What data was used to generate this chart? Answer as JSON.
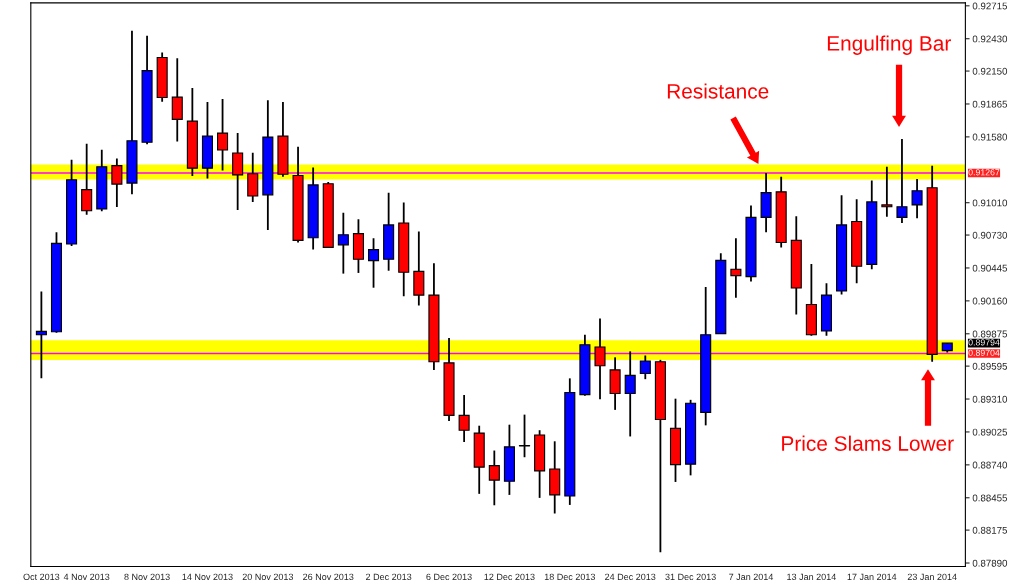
{
  "chart_data": {
    "type": "candlestick",
    "categories": [
      "Oct 2013",
      null,
      null,
      "4 Nov 2013",
      null,
      null,
      null,
      "8 Nov 2013",
      null,
      null,
      null,
      "14 Nov 2013",
      null,
      null,
      null,
      "20 Nov 2013",
      null,
      null,
      null,
      "26 Nov 2013",
      null,
      null,
      null,
      "2 Dec 2013",
      null,
      null,
      null,
      "6 Dec 2013",
      null,
      null,
      null,
      "12 Dec 2013",
      null,
      null,
      null,
      "18 Dec 2013",
      null,
      null,
      null,
      "24 Dec 2013",
      null,
      null,
      null,
      "31 Dec 2013",
      null,
      null,
      null,
      "7 Jan 2014",
      null,
      null,
      null,
      "13 Jan 2014",
      null,
      null,
      null,
      "17 Jan 2014",
      null,
      null,
      null,
      "23 Jan 2014",
      null
    ],
    "ohlc": [
      [
        0.89867,
        0.90242,
        0.89489,
        0.89896
      ],
      [
        0.89892,
        0.90754,
        0.89883,
        0.90658
      ],
      [
        0.90652,
        0.91382,
        0.90636,
        0.91209
      ],
      [
        0.91123,
        0.9152,
        0.90905,
        0.9094
      ],
      [
        0.90956,
        0.91469,
        0.90937,
        0.91321
      ],
      [
        0.91331,
        0.91392,
        0.90972,
        0.91171
      ],
      [
        0.9118,
        0.925,
        0.91084,
        0.91546
      ],
      [
        0.91533,
        0.92456,
        0.91517,
        0.92154
      ],
      [
        0.92267,
        0.92311,
        0.91885,
        0.91921
      ],
      [
        0.91924,
        0.9226,
        0.91539,
        0.91732
      ],
      [
        0.91716,
        0.92004,
        0.91241,
        0.91309
      ],
      [
        0.91309,
        0.91882,
        0.91219,
        0.91587
      ],
      [
        0.91613,
        0.91908,
        0.91289,
        0.91466
      ],
      [
        0.9144,
        0.91613,
        0.90947,
        0.91251
      ],
      [
        0.91261,
        0.91443,
        0.91017,
        0.91068
      ],
      [
        0.91078,
        0.91898,
        0.90774,
        0.91578
      ],
      [
        0.91587,
        0.91882,
        0.91235,
        0.91257
      ],
      [
        0.91245,
        0.91494,
        0.90665,
        0.90684
      ],
      [
        0.90706,
        0.91315,
        0.90604,
        0.91164
      ],
      [
        0.91174,
        0.9119,
        0.90617,
        0.90623
      ],
      [
        0.90645,
        0.90924,
        0.90396,
        0.90732
      ],
      [
        0.90742,
        0.90867,
        0.90402,
        0.9052
      ],
      [
        0.90508,
        0.90703,
        0.90274,
        0.90604
      ],
      [
        0.9052,
        0.91097,
        0.90421,
        0.90818
      ],
      [
        0.90834,
        0.91011,
        0.902,
        0.90408
      ],
      [
        0.90415,
        0.90761,
        0.9012,
        0.9021
      ],
      [
        0.9021,
        0.90485,
        0.89562,
        0.89633
      ],
      [
        0.89623,
        0.89838,
        0.8912,
        0.89168
      ],
      [
        0.89168,
        0.89345,
        0.88938,
        0.8904
      ],
      [
        0.89015,
        0.89079,
        0.88489,
        0.8872
      ],
      [
        0.88733,
        0.88864,
        0.8839,
        0.88608
      ],
      [
        0.88598,
        0.89088,
        0.8848,
        0.88896
      ],
      [
        0.88906,
        0.89175,
        0.88806,
        0.88906
      ],
      [
        0.88999,
        0.8904,
        0.88454,
        0.88688
      ],
      [
        0.88704,
        0.88944,
        0.88319,
        0.8848
      ],
      [
        0.8847,
        0.89489,
        0.88393,
        0.89367
      ],
      [
        0.89348,
        0.89867,
        0.89338,
        0.8978
      ],
      [
        0.89761,
        0.90008,
        0.89309,
        0.89598
      ],
      [
        0.89562,
        0.89671,
        0.89216,
        0.89358
      ],
      [
        0.89358,
        0.89723,
        0.88986,
        0.89515
      ],
      [
        0.89531,
        0.89687,
        0.89482,
        0.89639
      ],
      [
        0.89633,
        0.89649,
        0.87983,
        0.89133
      ],
      [
        0.89056,
        0.89313,
        0.88592,
        0.88742
      ],
      [
        0.88746,
        0.89303,
        0.88649,
        0.89274
      ],
      [
        0.89194,
        0.9028,
        0.89082,
        0.89867
      ],
      [
        0.89876,
        0.90572,
        0.89876,
        0.90511
      ],
      [
        0.90434,
        0.90703,
        0.90187,
        0.90379
      ],
      [
        0.9037,
        0.90985,
        0.90328,
        0.90883
      ],
      [
        0.90883,
        0.91267,
        0.90754,
        0.91097
      ],
      [
        0.91104,
        0.91235,
        0.90623,
        0.90665
      ],
      [
        0.90684,
        0.90892,
        0.90043,
        0.90271
      ],
      [
        0.90129,
        0.90479,
        0.89857,
        0.89867
      ],
      [
        0.89899,
        0.90312,
        0.89857,
        0.9021
      ],
      [
        0.90245,
        0.91075,
        0.90216,
        0.90818
      ],
      [
        0.90847,
        0.91039,
        0.90312,
        0.9046
      ],
      [
        0.90476,
        0.91203,
        0.90434,
        0.91017
      ],
      [
        0.90991,
        0.91321,
        0.90889,
        0.90975
      ],
      [
        0.90883,
        0.91562,
        0.90834,
        0.90975
      ],
      [
        0.90991,
        0.91216,
        0.90876,
        0.91113
      ],
      [
        0.91139,
        0.91331,
        0.89633,
        0.89697
      ],
      [
        0.89729,
        0.89794,
        0.89713,
        0.89794
      ]
    ],
    "colors": [
      "#0000ff",
      "#0000ff",
      "#0000ff",
      "#ff0000",
      "#0000ff",
      "#ff0000",
      "#0000ff",
      "#0000ff",
      "#ff0000",
      "#ff0000",
      "#ff0000",
      "#0000ff",
      "#ff0000",
      "#ff0000",
      "#ff0000",
      "#0000ff",
      "#ff0000",
      "#ff0000",
      "#0000ff",
      "#ff0000",
      "#0000ff",
      "#ff0000",
      "#0000ff",
      "#0000ff",
      "#ff0000",
      "#ff0000",
      "#ff0000",
      "#ff0000",
      "#ff0000",
      "#ff0000",
      "#ff0000",
      "#0000ff",
      "#000000",
      "#ff0000",
      "#ff0000",
      "#0000ff",
      "#0000ff",
      "#ff0000",
      "#ff0000",
      "#0000ff",
      "#0000ff",
      "#ff0000",
      "#ff0000",
      "#0000ff",
      "#0000ff",
      "#0000ff",
      "#ff0000",
      "#0000ff",
      "#0000ff",
      "#ff0000",
      "#ff0000",
      "#ff0000",
      "#0000ff",
      "#0000ff",
      "#ff0000",
      "#0000ff",
      "#ff0000",
      "#0000ff",
      "#0000ff",
      "#ff0000",
      "#0000ff"
    ],
    "ylim": [
      0.8786,
      0.9274
    ],
    "yticks": [
      0.92715,
      {
        "value": 0.9243,
        "label": "0.92430"
      },
      {
        "value": 0.9215,
        "label": "0.92150"
      },
      0.91865,
      {
        "value": 0.9158,
        "label": "0.91580"
      },
      {
        "value": 0.9101,
        "label": "0.91010"
      },
      {
        "value": 0.9073,
        "label": "0.90730"
      },
      0.90445,
      {
        "value": 0.9016,
        "label": "0.90160"
      },
      0.89875,
      0.89595,
      {
        "value": 0.8931,
        "label": "0.89310"
      },
      0.89025,
      {
        "value": 0.8874,
        "label": "0.88740"
      },
      0.88455,
      0.88175,
      {
        "value": 0.8789,
        "label": "0.87890"
      }
    ],
    "bands": [
      {
        "axis": "y",
        "from": 0.91212,
        "to": 0.91341,
        "color": "#ffff00"
      },
      {
        "axis": "y",
        "from": 0.89649,
        "to": 0.89819,
        "color": "#ffff00"
      }
    ],
    "ref_lines": [
      {
        "axis": "y",
        "value": 0.91267,
        "label": "0.91267",
        "color": "#ff00ff"
      },
      {
        "axis": "y",
        "value": 0.89704,
        "label": "0.89704",
        "color": "#ff00ff"
      }
    ],
    "annotations": [
      "Resistance",
      "Engulfing Bar",
      "Price Slams Lower",
      "0.89794"
    ],
    "grid": false,
    "legend": false
  }
}
